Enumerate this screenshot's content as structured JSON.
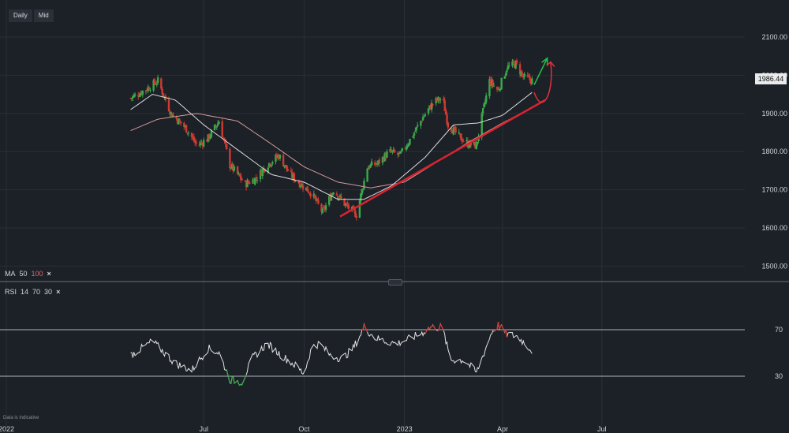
{
  "toolbar": {
    "interval": "Daily",
    "price_type": "Mid"
  },
  "indicators": {
    "ma": {
      "name": "MA",
      "p1": "50",
      "p2": "100",
      "close": "×"
    },
    "rsi": {
      "name": "RSI",
      "p1": "14",
      "p2": "70",
      "p3": "30",
      "close": "×"
    }
  },
  "last_price": "1986.44",
  "disclaimer": "Data is indicative",
  "colors": {
    "background": "#1c2027",
    "up": "#3aa84a",
    "down": "#d03a32",
    "ma50": "#dcdcdc",
    "ma100": "#d59a98",
    "trendline": "#d8242f",
    "arrow_up": "#25c04a",
    "arrow_curve": "#e0313a",
    "rsi": "#e2e2e2",
    "grid": "#2a2f37"
  },
  "chart_data": {
    "type": "candlestick",
    "price_axis": {
      "ticks": [
        "2100.00",
        "2000.00",
        "1900.00",
        "1800.00",
        "1700.00",
        "1600.00",
        "1500.00"
      ],
      "ylim": [
        1450,
        2150
      ]
    },
    "rsi_axis": {
      "ticks": [
        "70",
        "30"
      ],
      "ylim": [
        15,
        85
      ]
    },
    "time_axis": {
      "ticks": [
        "2022",
        "Jul",
        "Oct",
        "2023",
        "Apr",
        "Jul"
      ]
    },
    "price_anchors": [
      [
        "2022-04-25",
        1940
      ],
      [
        "2022-05-10",
        1965
      ],
      [
        "2022-05-20",
        1985
      ],
      [
        "2022-06-01",
        1900
      ],
      [
        "2022-06-15",
        1860
      ],
      [
        "2022-06-25",
        1815
      ],
      [
        "2022-07-05",
        1835
      ],
      [
        "2022-07-15",
        1880
      ],
      [
        "2022-07-25",
        1765
      ],
      [
        "2022-08-08",
        1715
      ],
      [
        "2022-08-18",
        1730
      ],
      [
        "2022-08-28",
        1765
      ],
      [
        "2022-09-08",
        1790
      ],
      [
        "2022-09-18",
        1740
      ],
      [
        "2022-09-28",
        1715
      ],
      [
        "2022-10-08",
        1690
      ],
      [
        "2022-10-18",
        1640
      ],
      [
        "2022-10-28",
        1700
      ],
      [
        "2022-11-08",
        1660
      ],
      [
        "2022-11-18",
        1635
      ],
      [
        "2022-11-28",
        1760
      ],
      [
        "2022-12-08",
        1770
      ],
      [
        "2022-12-18",
        1800
      ],
      [
        "2022-12-28",
        1790
      ],
      [
        "2023-01-08",
        1840
      ],
      [
        "2023-01-18",
        1890
      ],
      [
        "2023-01-28",
        1930
      ],
      [
        "2023-02-05",
        1940
      ],
      [
        "2023-02-10",
        1870
      ],
      [
        "2023-02-20",
        1840
      ],
      [
        "2023-02-28",
        1820
      ],
      [
        "2023-03-08",
        1815
      ],
      [
        "2023-03-13",
        1890
      ],
      [
        "2023-03-20",
        1985
      ],
      [
        "2023-03-28",
        1960
      ],
      [
        "2023-04-05",
        2020
      ],
      [
        "2023-04-13",
        2030
      ],
      [
        "2023-04-20",
        1995
      ],
      [
        "2023-04-28",
        1986
      ]
    ],
    "ma50_anchors": [
      [
        "2022-04-25",
        1910
      ],
      [
        "2022-05-15",
        1950
      ],
      [
        "2022-06-05",
        1935
      ],
      [
        "2022-07-01",
        1870
      ],
      [
        "2022-08-01",
        1805
      ],
      [
        "2022-09-01",
        1740
      ],
      [
        "2022-10-01",
        1720
      ],
      [
        "2022-11-01",
        1675
      ],
      [
        "2022-11-25",
        1675
      ],
      [
        "2022-12-20",
        1710
      ],
      [
        "2023-01-20",
        1785
      ],
      [
        "2023-02-15",
        1870
      ],
      [
        "2023-03-10",
        1875
      ],
      [
        "2023-04-01",
        1895
      ],
      [
        "2023-04-28",
        1955
      ]
    ],
    "ma100_anchors": [
      [
        "2022-04-25",
        1855
      ],
      [
        "2022-05-20",
        1885
      ],
      [
        "2022-06-25",
        1900
      ],
      [
        "2022-08-01",
        1880
      ],
      [
        "2022-09-01",
        1820
      ],
      [
        "2022-10-01",
        1760
      ],
      [
        "2022-11-01",
        1720
      ],
      [
        "2022-12-01",
        1705
      ],
      [
        "2023-01-01",
        1720
      ],
      [
        "2023-02-01",
        1775
      ],
      [
        "2023-03-01",
        1825
      ],
      [
        "2023-04-01",
        1875
      ],
      [
        "2023-04-28",
        1915
      ]
    ],
    "rsi_anchors": [
      [
        "2022-04-25",
        48
      ],
      [
        "2022-05-15",
        60
      ],
      [
        "2022-06-05",
        41
      ],
      [
        "2022-06-20",
        35
      ],
      [
        "2022-07-05",
        54
      ],
      [
        "2022-07-15",
        50
      ],
      [
        "2022-07-25",
        27
      ],
      [
        "2022-08-05",
        25
      ],
      [
        "2022-08-15",
        46
      ],
      [
        "2022-08-28",
        58
      ],
      [
        "2022-09-10",
        48
      ],
      [
        "2022-09-22",
        40
      ],
      [
        "2022-10-01",
        32
      ],
      [
        "2022-10-08",
        55
      ],
      [
        "2022-10-15",
        58
      ],
      [
        "2022-10-25",
        48
      ],
      [
        "2022-11-05",
        45
      ],
      [
        "2022-11-15",
        54
      ],
      [
        "2022-11-25",
        72
      ],
      [
        "2022-12-05",
        63
      ],
      [
        "2022-12-15",
        60
      ],
      [
        "2022-12-25",
        58
      ],
      [
        "2023-01-05",
        62
      ],
      [
        "2023-01-15",
        66
      ],
      [
        "2023-01-25",
        72
      ],
      [
        "2023-02-05",
        72
      ],
      [
        "2023-02-12",
        44
      ],
      [
        "2023-02-25",
        44
      ],
      [
        "2023-03-08",
        33
      ],
      [
        "2023-03-15",
        50
      ],
      [
        "2023-03-22",
        68
      ],
      [
        "2023-03-28",
        74
      ],
      [
        "2023-04-05",
        66
      ],
      [
        "2023-04-15",
        64
      ],
      [
        "2023-04-28",
        52
      ]
    ],
    "annotations": [
      {
        "type": "trendline",
        "from": [
          "2022-11-03",
          1630
        ],
        "to": [
          "2023-05-10",
          1935
        ]
      },
      {
        "type": "arrow-up",
        "from": [
          "2023-04-30",
          1975
        ],
        "to": [
          "2023-05-12",
          2045
        ]
      },
      {
        "type": "arrow-curve",
        "from": [
          "2023-04-30",
          1955
        ],
        "to": [
          "2023-05-15",
          2035
        ]
      }
    ]
  }
}
